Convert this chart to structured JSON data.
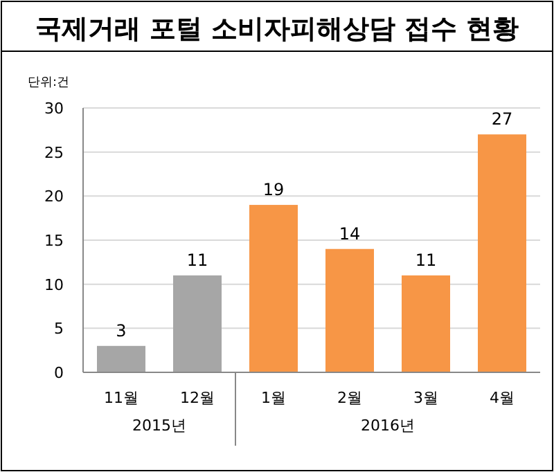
{
  "chart_data": {
    "type": "bar",
    "title": "국제거래 포털 소비자피해상담 접수 현황",
    "categories": [
      "11월",
      "12월",
      "1월",
      "2월",
      "3월",
      "4월"
    ],
    "series": [
      {
        "color": "#a6a6a6",
        "values": [
          3,
          11,
          null,
          null,
          null,
          null
        ]
      },
      {
        "color": "#f79646",
        "values": [
          null,
          null,
          19,
          14,
          11,
          27
        ]
      }
    ],
    "ylim": [
      0,
      30
    ],
    "yticks": [
      0,
      5,
      10,
      15,
      20,
      25,
      30
    ],
    "grid": "y",
    "data_labels": true,
    "annotations": [
      "2015년",
      "2016년",
      "단위:건"
    ]
  }
}
